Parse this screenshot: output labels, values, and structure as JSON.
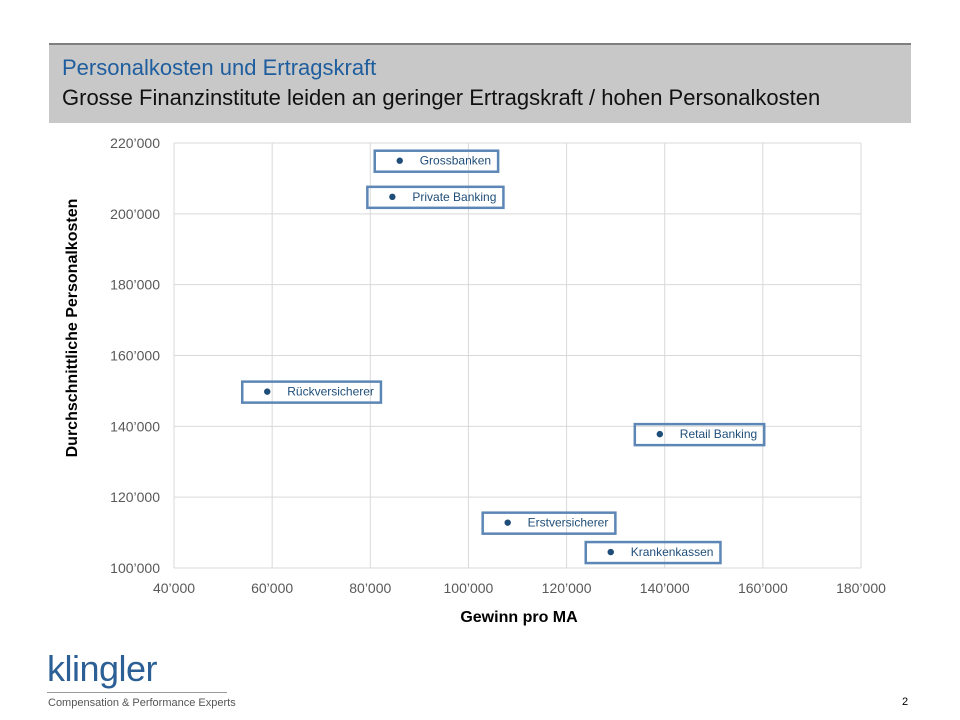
{
  "header": {
    "title": "Personalkosten und Ertragskraft",
    "subtitle": "Grosse Finanzinstitute leiden an geringer Ertragskraft / hohen Personalkosten"
  },
  "chart_data": {
    "type": "scatter",
    "xlabel": "Gewinn pro MA",
    "ylabel": "Durchschnittliche Personalkosten",
    "xlim": [
      40000,
      180000
    ],
    "ylim": [
      100000,
      220000
    ],
    "x_ticks": [
      "40’000",
      "60’000",
      "80’000",
      "100’000",
      "120’000",
      "140’000",
      "160’000",
      "180’000"
    ],
    "y_ticks": [
      "100’000",
      "120’000",
      "140’000",
      "160’000",
      "180’000",
      "200’000",
      "220’000"
    ],
    "grid": true,
    "points": [
      {
        "label": "Grossbanken",
        "x": 86000,
        "y": 215000
      },
      {
        "label": "Private Banking",
        "x": 84500,
        "y": 204800
      },
      {
        "label": "Rückversicherer",
        "x": 59000,
        "y": 149800
      },
      {
        "label": "Retail Banking",
        "x": 139000,
        "y": 137800
      },
      {
        "label": "Erstversicherer",
        "x": 108000,
        "y": 112800
      },
      {
        "label": "Krankenkassen",
        "x": 129000,
        "y": 104500
      }
    ],
    "colors": {
      "marker": "#1f4e79",
      "label_box_border": "#5b86b5",
      "label_text": "#1f4e79",
      "grid": "#d9d9d9",
      "tick_text": "#595959"
    }
  },
  "footer": {
    "logo": "klingler",
    "tagline": "Compensation & Performance Experts",
    "page": "2"
  }
}
